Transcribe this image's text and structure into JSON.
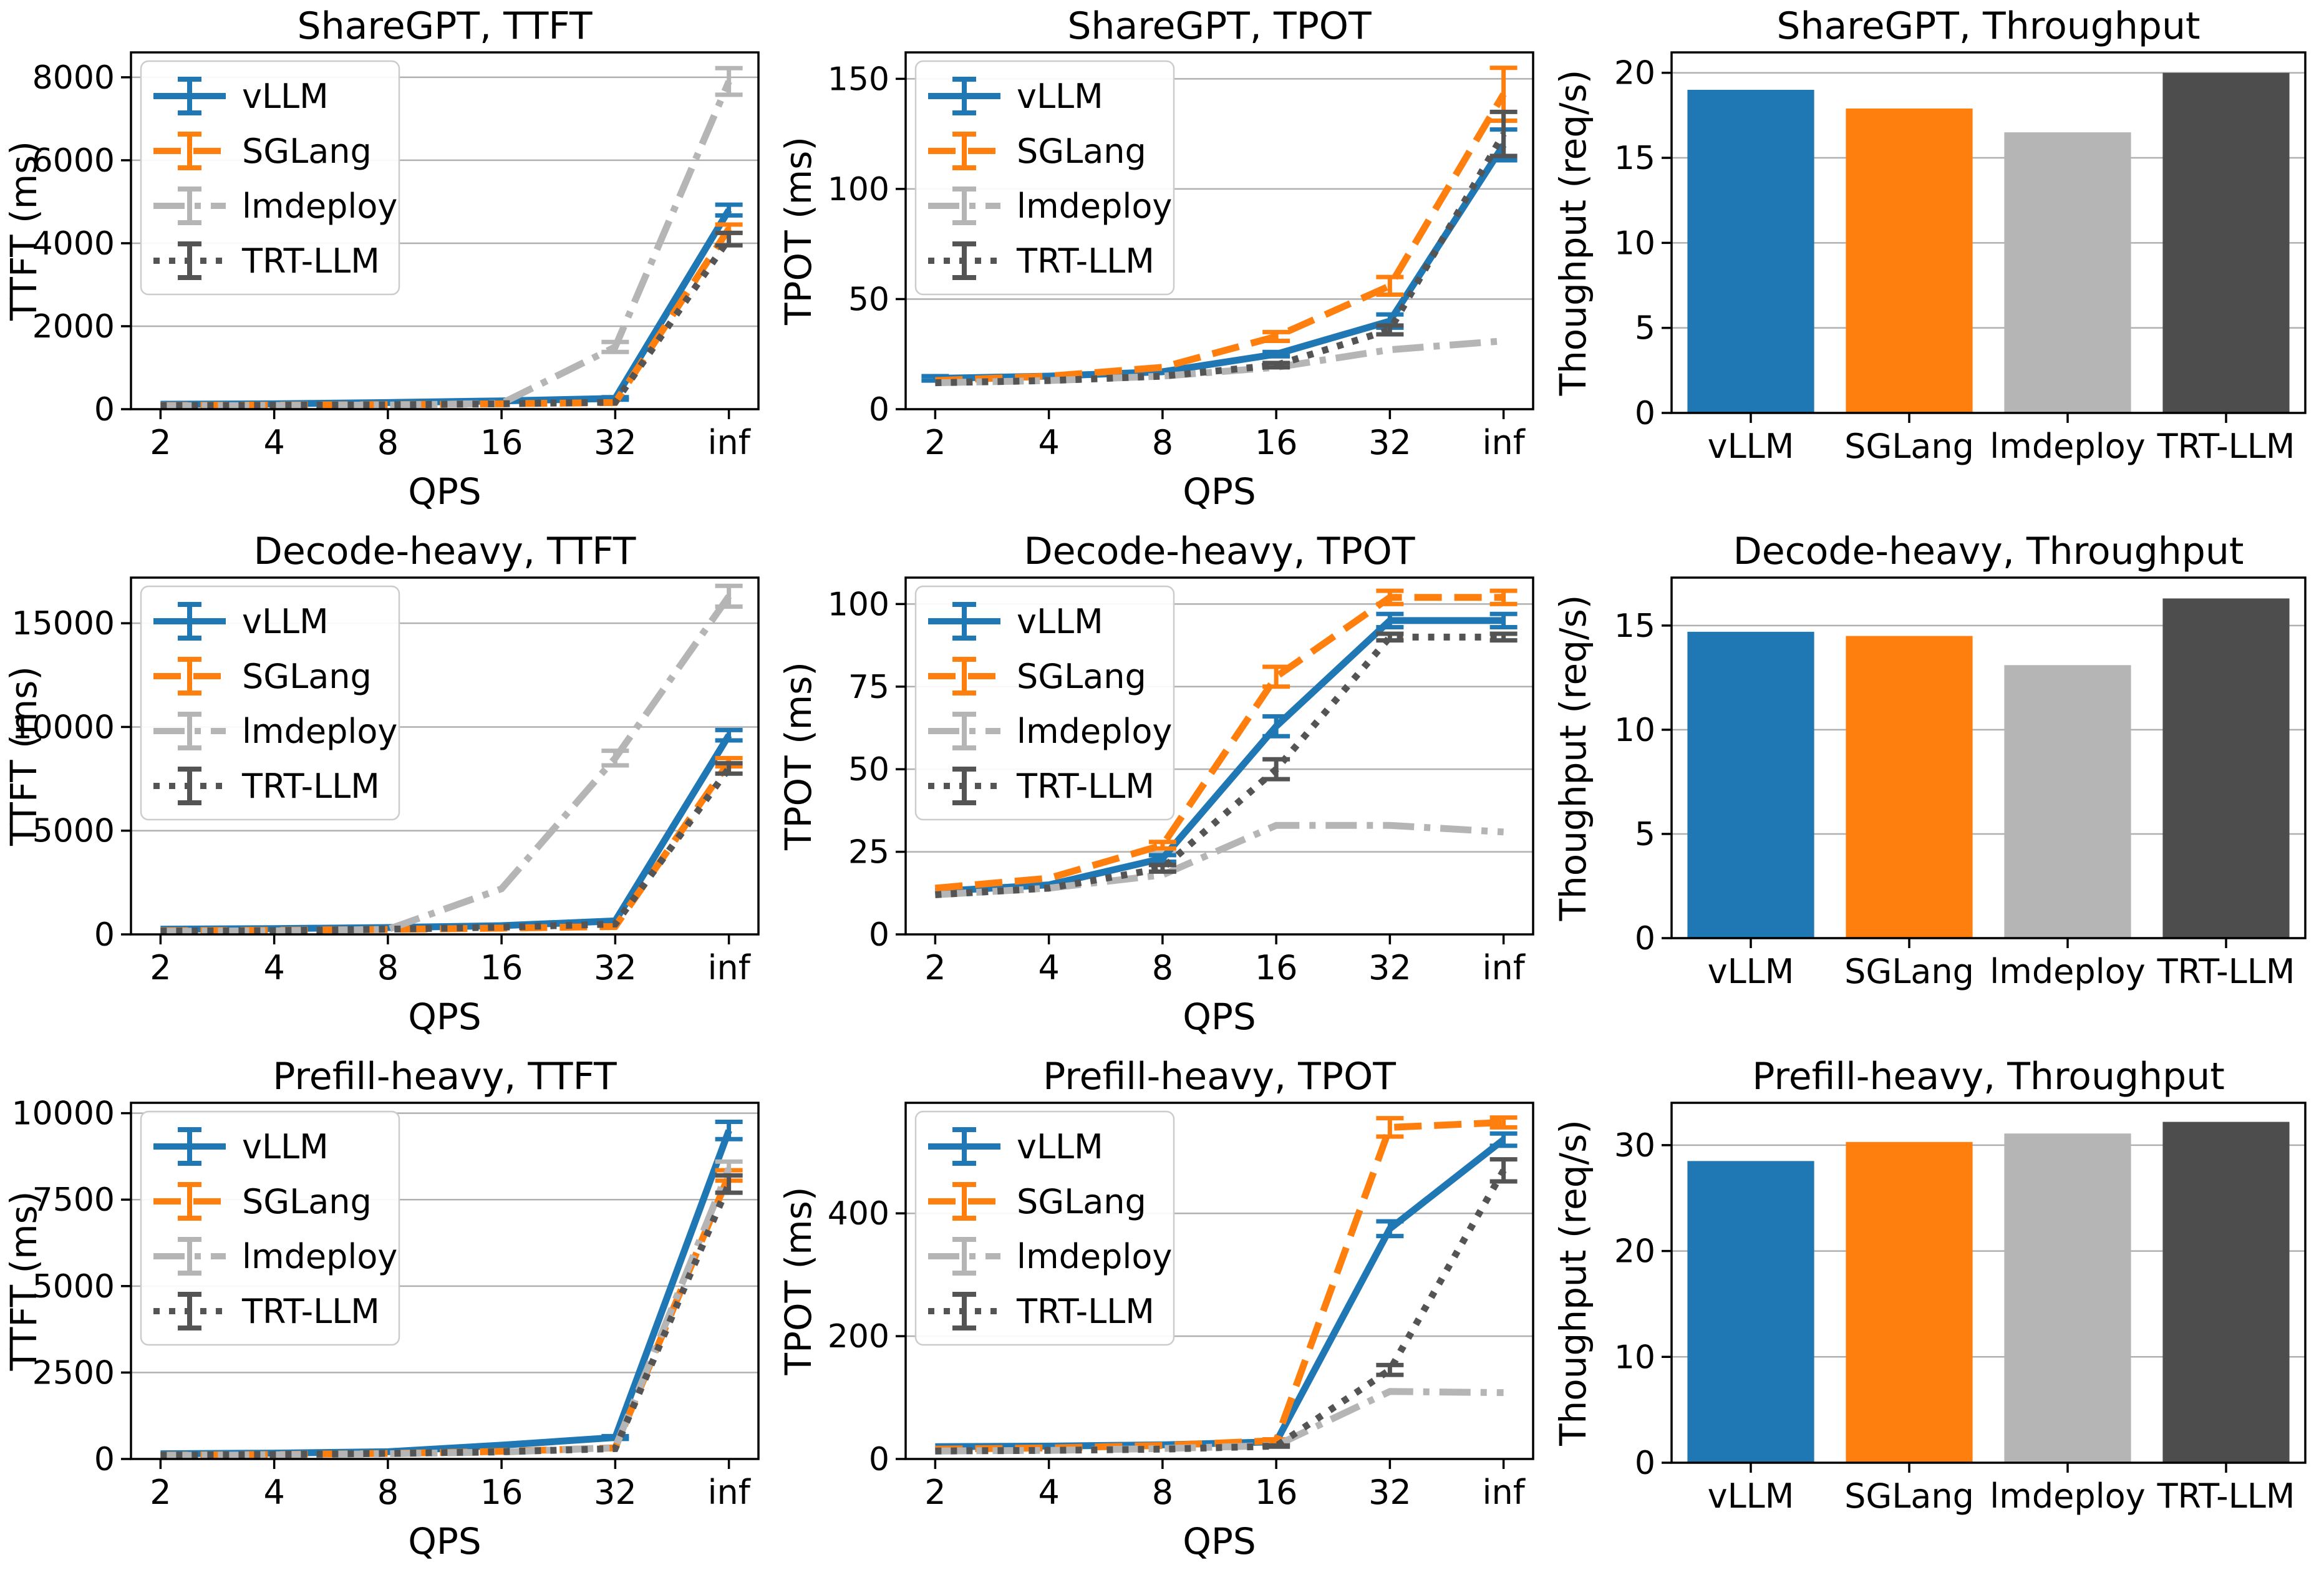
{
  "figure": {
    "description": "LLM serving engine benchmark grid: TTFT, TPOT and Throughput across ShareGPT, Decode-heavy and Prefill-heavy workloads",
    "engines": [
      "vLLM",
      "SGLang",
      "lmdeploy",
      "TRT-LLM"
    ],
    "colors": {
      "vllm": "#1f77b4",
      "sglang": "#ff7f0e",
      "lmdeploy": "#b5b5b5",
      "trtllm": "#545454",
      "grid": "#b0b0b0",
      "spine": "#000000",
      "legend_border": "#cccccc"
    }
  },
  "chart_data": [
    {
      "type": "line",
      "title": "ShareGPT, TTFT",
      "xlabel": "QPS",
      "ylabel": "TTFT (ms)",
      "xscale": "log2",
      "x_ticklabels": [
        "2",
        "4",
        "8",
        "16",
        "32",
        "inf"
      ],
      "x_log_positions": [
        1,
        2,
        3,
        4,
        5,
        6
      ],
      "yticks": [
        0,
        2000,
        4000,
        6000,
        8000
      ],
      "ylim": [
        0,
        8600
      ],
      "legend_position": "upper-left",
      "grid": true,
      "series": [
        {
          "name": "vLLM",
          "color": "#1f77b4",
          "dash": "solid",
          "values": [
            120,
            130,
            160,
            200,
            260,
            4800
          ],
          "err": [
            0,
            0,
            0,
            0,
            30,
            130
          ]
        },
        {
          "name": "SGLang",
          "color": "#ff7f0e",
          "dash": "dashed",
          "values": [
            90,
            100,
            110,
            130,
            160,
            4350
          ],
          "err": [
            0,
            0,
            0,
            0,
            0,
            100
          ]
        },
        {
          "name": "lmdeploy",
          "color": "#b5b5b5",
          "dash": "dashdot",
          "values": [
            80,
            90,
            100,
            140,
            1500,
            7900
          ],
          "err": [
            0,
            0,
            0,
            0,
            120,
            320
          ]
        },
        {
          "name": "TRT-LLM",
          "color": "#545454",
          "dash": "dotted",
          "values": [
            85,
            95,
            105,
            130,
            170,
            4100
          ],
          "err": [
            0,
            0,
            0,
            0,
            0,
            150
          ]
        }
      ]
    },
    {
      "type": "line",
      "title": "ShareGPT, TPOT",
      "xlabel": "QPS",
      "ylabel": "TPOT (ms)",
      "xscale": "log2",
      "x_ticklabels": [
        "2",
        "4",
        "8",
        "16",
        "32",
        "inf"
      ],
      "x_log_positions": [
        1,
        2,
        3,
        4,
        5,
        6
      ],
      "yticks": [
        0,
        50,
        100,
        150
      ],
      "ylim": [
        0,
        162
      ],
      "legend_position": "upper-left",
      "grid": true,
      "series": [
        {
          "name": "vLLM",
          "color": "#1f77b4",
          "dash": "solid",
          "values": [
            14,
            15,
            17,
            25,
            40,
            120
          ],
          "err": [
            1,
            0,
            0,
            1,
            3,
            7
          ]
        },
        {
          "name": "SGLang",
          "color": "#ff7f0e",
          "dash": "dashed",
          "values": [
            13,
            15,
            19,
            33,
            56,
            143
          ],
          "err": [
            0,
            0,
            0,
            2,
            4,
            12
          ]
        },
        {
          "name": "lmdeploy",
          "color": "#b5b5b5",
          "dash": "dashdot",
          "values": [
            12,
            13,
            15,
            19,
            27,
            31
          ],
          "err": [
            0,
            0,
            0,
            0,
            0,
            0
          ]
        },
        {
          "name": "TRT-LLM",
          "color": "#545454",
          "dash": "dotted",
          "values": [
            12,
            13,
            15,
            20,
            36,
            125
          ],
          "err": [
            0,
            0,
            0,
            1,
            2,
            10
          ]
        }
      ]
    },
    {
      "type": "bar",
      "title": "ShareGPT, Throughput",
      "ylabel": "Thoughput (req/s)",
      "categories": [
        "vLLM",
        "SGLang",
        "lmdeploy",
        "TRT-LLM"
      ],
      "values": [
        19.0,
        17.9,
        16.5,
        20.0
      ],
      "colors": [
        "#1f77b4",
        "#ff7f0e",
        "#b5b5b5",
        "#4d4d4d"
      ],
      "yticks": [
        0,
        5,
        10,
        15,
        20
      ],
      "ylim": [
        0,
        21.2
      ],
      "grid": true
    },
    {
      "type": "line",
      "title": "Decode-heavy, TTFT",
      "xlabel": "QPS",
      "ylabel": "TTFT (ms)",
      "xscale": "log2",
      "x_ticklabels": [
        "2",
        "4",
        "8",
        "16",
        "32",
        "inf"
      ],
      "x_log_positions": [
        1,
        2,
        3,
        4,
        5,
        6
      ],
      "yticks": [
        0,
        5000,
        10000,
        15000
      ],
      "ylim": [
        0,
        17200
      ],
      "legend_position": "upper-left",
      "grid": true,
      "series": [
        {
          "name": "vLLM",
          "color": "#1f77b4",
          "dash": "solid",
          "values": [
            250,
            280,
            330,
            420,
            650,
            9600
          ],
          "err": [
            0,
            0,
            0,
            0,
            0,
            250
          ]
        },
        {
          "name": "SGLang",
          "color": "#ff7f0e",
          "dash": "dashed",
          "values": [
            180,
            200,
            240,
            300,
            380,
            8300
          ],
          "err": [
            0,
            0,
            0,
            0,
            0,
            200
          ]
        },
        {
          "name": "lmdeploy",
          "color": "#b5b5b5",
          "dash": "dashdot",
          "values": [
            150,
            170,
            240,
            2200,
            8500,
            16300
          ],
          "err": [
            0,
            0,
            0,
            0,
            350,
            500
          ]
        },
        {
          "name": "TRT-LLM",
          "color": "#545454",
          "dash": "dotted",
          "values": [
            160,
            180,
            250,
            350,
            500,
            8000
          ],
          "err": [
            0,
            0,
            0,
            0,
            0,
            250
          ]
        }
      ]
    },
    {
      "type": "line",
      "title": "Decode-heavy, TPOT",
      "xlabel": "QPS",
      "ylabel": "TPOT (ms)",
      "xscale": "log2",
      "x_ticklabels": [
        "2",
        "4",
        "8",
        "16",
        "32",
        "inf"
      ],
      "x_log_positions": [
        1,
        2,
        3,
        4,
        5,
        6
      ],
      "yticks": [
        0,
        25,
        50,
        75,
        100
      ],
      "ylim": [
        0,
        108
      ],
      "legend_position": "upper-left",
      "grid": true,
      "series": [
        {
          "name": "vLLM",
          "color": "#1f77b4",
          "dash": "solid",
          "values": [
            13,
            15,
            23,
            63,
            95,
            95
          ],
          "err": [
            0,
            0,
            1,
            3,
            2,
            2
          ]
        },
        {
          "name": "SGLang",
          "color": "#ff7f0e",
          "dash": "dashed",
          "values": [
            14,
            17,
            27,
            78,
            102,
            102
          ],
          "err": [
            0,
            0,
            1,
            3,
            2,
            2
          ]
        },
        {
          "name": "lmdeploy",
          "color": "#b5b5b5",
          "dash": "dashdot",
          "values": [
            12,
            14,
            18,
            33,
            33,
            31
          ],
          "err": [
            0,
            0,
            0,
            0,
            0,
            0
          ]
        },
        {
          "name": "TRT-LLM",
          "color": "#545454",
          "dash": "dotted",
          "values": [
            12,
            14,
            20,
            50,
            90,
            90
          ],
          "err": [
            0,
            0,
            1,
            3,
            1,
            1
          ]
        }
      ]
    },
    {
      "type": "bar",
      "title": "Decode-heavy, Throughput",
      "ylabel": "Thoughput (req/s)",
      "categories": [
        "vLLM",
        "SGLang",
        "lmdeploy",
        "TRT-LLM"
      ],
      "values": [
        14.7,
        14.5,
        13.1,
        16.3
      ],
      "colors": [
        "#1f77b4",
        "#ff7f0e",
        "#b5b5b5",
        "#4d4d4d"
      ],
      "yticks": [
        0,
        5,
        10,
        15
      ],
      "ylim": [
        0,
        17.3
      ],
      "grid": true
    },
    {
      "type": "line",
      "title": "Prefill-heavy, TTFT",
      "xlabel": "QPS",
      "ylabel": "TTFT (ms)",
      "xscale": "log2",
      "x_ticklabels": [
        "2",
        "4",
        "8",
        "16",
        "32",
        "inf"
      ],
      "x_log_positions": [
        1,
        2,
        3,
        4,
        5,
        6
      ],
      "yticks": [
        0,
        2500,
        5000,
        7500,
        10000
      ],
      "ylim": [
        0,
        10300
      ],
      "legend_position": "upper-left",
      "grid": true,
      "series": [
        {
          "name": "vLLM",
          "color": "#1f77b4",
          "dash": "solid",
          "values": [
            150,
            170,
            210,
            400,
            620,
            9500
          ],
          "err": [
            0,
            0,
            0,
            0,
            40,
            250
          ]
        },
        {
          "name": "SGLang",
          "color": "#ff7f0e",
          "dash": "dashed",
          "values": [
            110,
            130,
            160,
            220,
            320,
            8200
          ],
          "err": [
            0,
            0,
            0,
            0,
            0,
            150
          ]
        },
        {
          "name": "lmdeploy",
          "color": "#b5b5b5",
          "dash": "dashdot",
          "values": [
            100,
            120,
            150,
            200,
            330,
            8400
          ],
          "err": [
            0,
            0,
            0,
            0,
            0,
            200
          ]
        },
        {
          "name": "TRT-LLM",
          "color": "#545454",
          "dash": "dotted",
          "values": [
            110,
            130,
            160,
            210,
            300,
            7950
          ],
          "err": [
            0,
            0,
            0,
            0,
            0,
            250
          ]
        }
      ]
    },
    {
      "type": "line",
      "title": "Prefill-heavy, TPOT",
      "xlabel": "QPS",
      "ylabel": "TPOT (ms)",
      "xscale": "log2",
      "x_ticklabels": [
        "2",
        "4",
        "8",
        "16",
        "32",
        "inf"
      ],
      "x_log_positions": [
        1,
        2,
        3,
        4,
        5,
        6
      ],
      "yticks": [
        0,
        200,
        400
      ],
      "ylim": [
        0,
        580
      ],
      "legend_position": "upper-left",
      "grid": true,
      "series": [
        {
          "name": "vLLM",
          "color": "#1f77b4",
          "dash": "solid",
          "values": [
            20,
            21,
            23,
            28,
            375,
            520
          ],
          "err": [
            0,
            0,
            0,
            2,
            12,
            10
          ]
        },
        {
          "name": "SGLang",
          "color": "#ff7f0e",
          "dash": "dashed",
          "values": [
            16,
            18,
            22,
            30,
            540,
            548
          ],
          "err": [
            0,
            0,
            0,
            2,
            15,
            8
          ]
        },
        {
          "name": "lmdeploy",
          "color": "#b5b5b5",
          "dash": "dashdot",
          "values": [
            13,
            14,
            17,
            22,
            110,
            108
          ],
          "err": [
            0,
            0,
            0,
            0,
            0,
            0
          ]
        },
        {
          "name": "TRT-LLM",
          "color": "#545454",
          "dash": "dotted",
          "values": [
            13,
            14,
            16,
            21,
            145,
            470
          ],
          "err": [
            0,
            0,
            0,
            1,
            8,
            18
          ]
        }
      ]
    },
    {
      "type": "bar",
      "title": "Prefill-heavy, Throughput",
      "ylabel": "Thoughput (req/s)",
      "categories": [
        "vLLM",
        "SGLang",
        "lmdeploy",
        "TRT-LLM"
      ],
      "values": [
        28.5,
        30.3,
        31.1,
        32.2
      ],
      "colors": [
        "#1f77b4",
        "#ff7f0e",
        "#b5b5b5",
        "#4d4d4d"
      ],
      "yticks": [
        0,
        10,
        20,
        30
      ],
      "ylim": [
        0,
        34
      ],
      "grid": true
    }
  ]
}
